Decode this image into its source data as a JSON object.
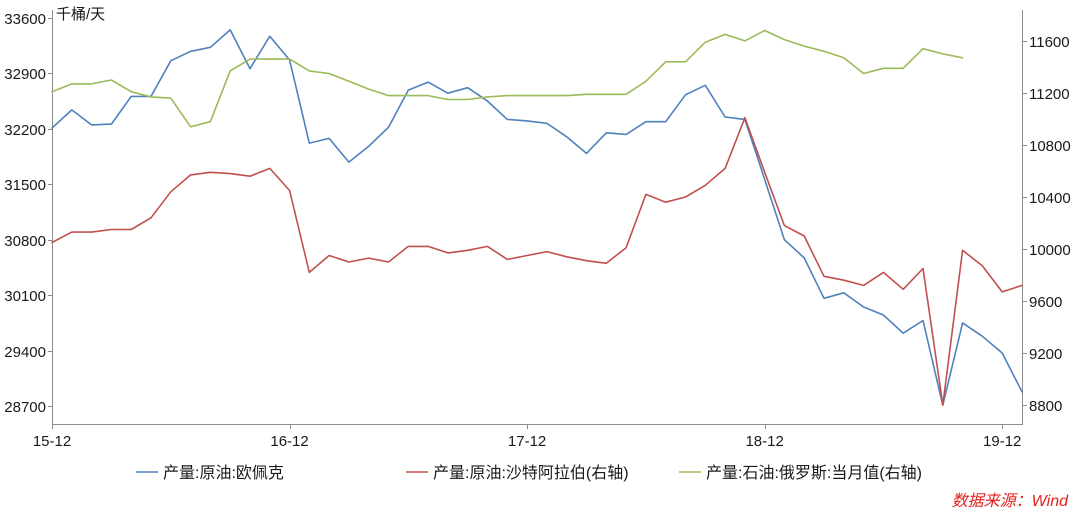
{
  "chart_data": {
    "type": "line",
    "unit_label": "千桶/天",
    "x": [
      "15-12",
      "16-01",
      "16-02",
      "16-03",
      "16-04",
      "16-05",
      "16-06",
      "16-07",
      "16-08",
      "16-09",
      "16-10",
      "16-11",
      "16-12",
      "17-01",
      "17-02",
      "17-03",
      "17-04",
      "17-05",
      "17-06",
      "17-07",
      "17-08",
      "17-09",
      "17-10",
      "17-11",
      "17-12",
      "18-01",
      "18-02",
      "18-03",
      "18-04",
      "18-05",
      "18-06",
      "18-07",
      "18-08",
      "18-09",
      "18-10",
      "18-11",
      "18-12",
      "19-01",
      "19-02",
      "19-03",
      "19-04",
      "19-05",
      "19-06",
      "19-07",
      "19-08",
      "19-09",
      "19-10",
      "19-11",
      "19-12",
      "20-01"
    ],
    "xticks": [
      "15-12",
      "16-12",
      "17-12",
      "18-12",
      "19-12"
    ],
    "y_left": {
      "ticks": [
        28700,
        29400,
        30100,
        30800,
        31500,
        32200,
        32900,
        33600
      ],
      "lim": [
        28473,
        33701
      ]
    },
    "y_right": {
      "ticks": [
        8800,
        9200,
        9600,
        10000,
        10400,
        10800,
        11200,
        11600
      ],
      "lim": [
        8654,
        11838
      ]
    },
    "series": [
      {
        "name": "产量:原油:欧佩克",
        "axis": "left",
        "color": "#4f81bd",
        "values": [
          32210,
          32440,
          32250,
          32260,
          32610,
          32610,
          33060,
          33180,
          33230,
          33450,
          32960,
          33370,
          33070,
          32020,
          32080,
          31780,
          31980,
          32220,
          32690,
          32790,
          32650,
          32720,
          32550,
          32320,
          32300,
          32270,
          32100,
          31890,
          32150,
          32130,
          32290,
          32290,
          32630,
          32750,
          32350,
          32320,
          31560,
          30800,
          30570,
          30060,
          30130,
          29950,
          29850,
          29620,
          29780,
          28710,
          29750,
          29580,
          29370,
          28880
        ]
      },
      {
        "name": "产量:原油:沙特阿拉伯(右轴)",
        "axis": "right",
        "color": "#c0504d",
        "values": [
          10050,
          10130,
          10130,
          10150,
          10150,
          10240,
          10440,
          10570,
          10590,
          10580,
          10560,
          10620,
          10450,
          9820,
          9950,
          9900,
          9930,
          9900,
          10020,
          10020,
          9970,
          9990,
          10020,
          9920,
          9950,
          9980,
          9940,
          9910,
          9890,
          10010,
          10420,
          10360,
          10400,
          10490,
          10620,
          11010,
          10590,
          10180,
          10100,
          9790,
          9760,
          9720,
          9820,
          9690,
          9850,
          8800,
          9990,
          9870,
          9670,
          9720
        ]
      },
      {
        "name": "产量:石油:俄罗斯:当月值(右轴)",
        "axis": "right",
        "color": "#9bbb59",
        "values": [
          11210,
          11270,
          11270,
          11300,
          11210,
          11170,
          11160,
          10940,
          10980,
          11370,
          11460,
          11460,
          11460,
          11370,
          11350,
          11290,
          11230,
          11180,
          11180,
          11180,
          11150,
          11150,
          11170,
          11180,
          11180,
          11180,
          11180,
          11190,
          11190,
          11190,
          11290,
          11440,
          11440,
          11590,
          11650,
          11600,
          11680,
          11610,
          11560,
          11520,
          11470,
          11350,
          11390,
          11390,
          11540,
          11500,
          11470,
          null,
          null,
          null
        ]
      }
    ],
    "legend": "bottom",
    "grid": false
  },
  "source": {
    "text": "数据来源：Wind",
    "color": "#e4211d"
  }
}
